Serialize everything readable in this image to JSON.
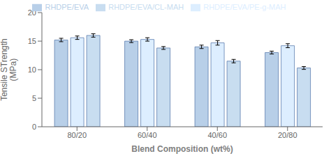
{
  "chart_data": {
    "type": "bar",
    "categories": [
      "80/20",
      "60/40",
      "40/60",
      "20/80"
    ],
    "series": [
      {
        "name": "RHDPE/EVA",
        "color": "#b8cfe8",
        "values": [
          15.2,
          15.0,
          14.0,
          13.0
        ],
        "errors": [
          0.3,
          0.25,
          0.3,
          0.25
        ]
      },
      {
        "name": "RHDPE/EVA/PE-g-MAH",
        "color": "#ddeeff",
        "values": [
          15.6,
          15.3,
          14.7,
          14.2
        ],
        "errors": [
          0.3,
          0.3,
          0.4,
          0.35
        ]
      },
      {
        "name": "RHDPE/EVA/CL-MAH",
        "color": "#c8ddf0",
        "values": [
          16.0,
          13.8,
          11.5,
          10.3
        ],
        "errors": [
          0.3,
          0.25,
          0.3,
          0.25
        ]
      }
    ],
    "xlabel": "Blend Composition (wt%)",
    "ylabel": "Tensile STrength\n(MPa)",
    "ylim": [
      0,
      20
    ],
    "yticks": [
      0,
      5,
      10,
      15,
      20
    ],
    "grid": false,
    "legend": "top"
  }
}
